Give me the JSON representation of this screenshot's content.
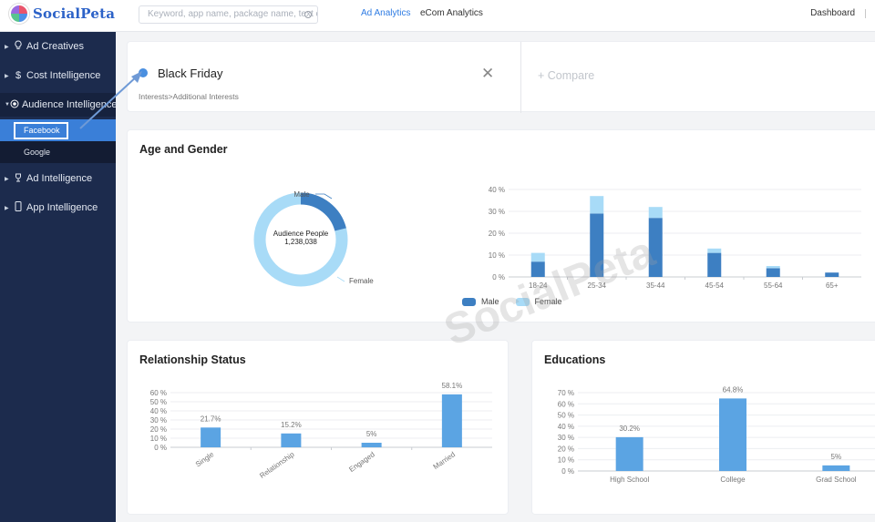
{
  "header": {
    "logo_text": "SocialPeta",
    "search_placeholder": "Keyword, app name, package name, text c",
    "nav": [
      "Ad Analytics",
      "eCom Analytics"
    ],
    "dashboard_label": "Dashboard"
  },
  "sidebar": {
    "items": [
      {
        "label": "Ad Creatives",
        "icon": "bulb-icon"
      },
      {
        "label": "Cost Intelligence",
        "icon": "dollar-icon"
      },
      {
        "label": "Audience Intelligence",
        "icon": "target-icon"
      },
      {
        "label": "Ad Intelligence",
        "icon": "trophy-icon"
      },
      {
        "label": "App Intelligence",
        "icon": "phone-icon"
      }
    ],
    "sub_items": [
      "Facebook",
      "Google"
    ]
  },
  "search_card": {
    "term": "Black Friday",
    "breadcrumb": "Interests>Additional Interests",
    "compare_label": "+ Compare"
  },
  "age_gender": {
    "title": "Age and Gender",
    "donut_center_label": "Audience People",
    "donut_center_value": "1,238,038",
    "legend": [
      "Male",
      "Female"
    ]
  },
  "relationship": {
    "title": "Relationship Status"
  },
  "educations": {
    "title": "Educations"
  },
  "watermark": "SocialPeta",
  "colors": {
    "male": "#3d7fc2",
    "female": "#a8dbf7",
    "bar": "#5ba4e3",
    "accent": "#2f7ce3",
    "sidebar": "#1c2b4d"
  },
  "chart_data": [
    {
      "type": "pie",
      "labels": [
        "Male",
        "Female"
      ],
      "values": [
        21,
        79
      ]
    },
    {
      "type": "bar",
      "stacked": true,
      "categories": [
        "18-24",
        "25-34",
        "35-44",
        "45-54",
        "55-64",
        "65+"
      ],
      "series": [
        {
          "name": "Male",
          "values": [
            7,
            29,
            27,
            11,
            4,
            2
          ]
        },
        {
          "name": "Female",
          "values": [
            4,
            8,
            5,
            2,
            1,
            0
          ]
        }
      ],
      "yticks": [
        "0 %",
        "10 %",
        "20 %",
        "30 %",
        "40 %"
      ],
      "ylim": [
        0,
        40
      ]
    },
    {
      "type": "bar",
      "categories": [
        "Single",
        "Relationship",
        "Engaged",
        "Married"
      ],
      "values": [
        21.7,
        15.2,
        5,
        58.1
      ],
      "data_labels": [
        "21.7%",
        "15.2%",
        "5%",
        "58.1%"
      ],
      "yticks": [
        "0 %",
        "10 %",
        "20 %",
        "30 %",
        "40 %",
        "50 %",
        "60 %"
      ],
      "ylim": [
        0,
        60
      ]
    },
    {
      "type": "bar",
      "categories": [
        "High School",
        "College",
        "Grad School"
      ],
      "values": [
        30.2,
        64.8,
        5
      ],
      "data_labels": [
        "30.2%",
        "64.8%",
        "5%"
      ],
      "yticks": [
        "0 %",
        "10 %",
        "20 %",
        "30 %",
        "40 %",
        "50 %",
        "60 %",
        "70 %"
      ],
      "ylim": [
        0,
        70
      ]
    }
  ]
}
